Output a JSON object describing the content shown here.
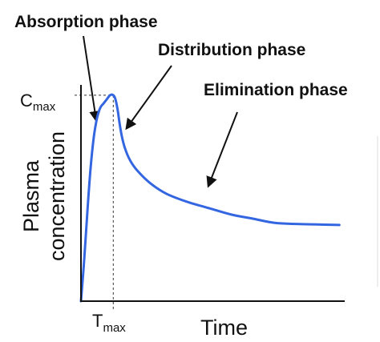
{
  "chart_data": {
    "type": "line",
    "xlabel": "Time",
    "ylabel_line1": "Plasma",
    "ylabel_line2": "concentration",
    "cmax": {
      "main": "C",
      "sub": "max"
    },
    "tmax": {
      "main": "T",
      "sub": "max"
    },
    "annotations": [
      {
        "id": "absorption",
        "text": "Absorption phase"
      },
      {
        "id": "distribution",
        "text": "Distribution phase"
      },
      {
        "id": "elimination",
        "text": "Elimination phase"
      }
    ],
    "series": [
      {
        "color": "#3366e0",
        "points": [
          [
            0,
            0
          ],
          [
            0.3,
            0.2
          ],
          [
            0.6,
            0.44
          ],
          [
            0.9,
            0.65
          ],
          [
            1.2,
            0.8
          ],
          [
            1.5,
            0.89
          ],
          [
            1.8,
            0.94
          ],
          [
            2.1,
            0.96
          ],
          [
            2.4,
            0.98
          ],
          [
            2.7,
            1.0
          ],
          [
            3.0,
            1.0
          ],
          [
            3.2,
            0.98
          ],
          [
            3.4,
            0.93
          ],
          [
            3.6,
            0.86
          ],
          [
            3.8,
            0.8
          ],
          [
            4.1,
            0.74
          ],
          [
            4.6,
            0.68
          ],
          [
            5.3,
            0.63
          ],
          [
            6.5,
            0.57
          ],
          [
            8.0,
            0.52
          ],
          [
            10.0,
            0.48
          ],
          [
            12.0,
            0.45
          ],
          [
            14.0,
            0.42
          ],
          [
            16.0,
            0.4
          ],
          [
            18.0,
            0.38
          ],
          [
            20.0,
            0.375
          ],
          [
            22.0,
            0.372
          ],
          [
            24.0,
            0.37
          ]
        ]
      }
    ],
    "tmax_value": 3.0,
    "cmax_value": 1.0,
    "xlim": [
      0,
      24.5
    ],
    "ylim": [
      0,
      1.05
    ]
  }
}
